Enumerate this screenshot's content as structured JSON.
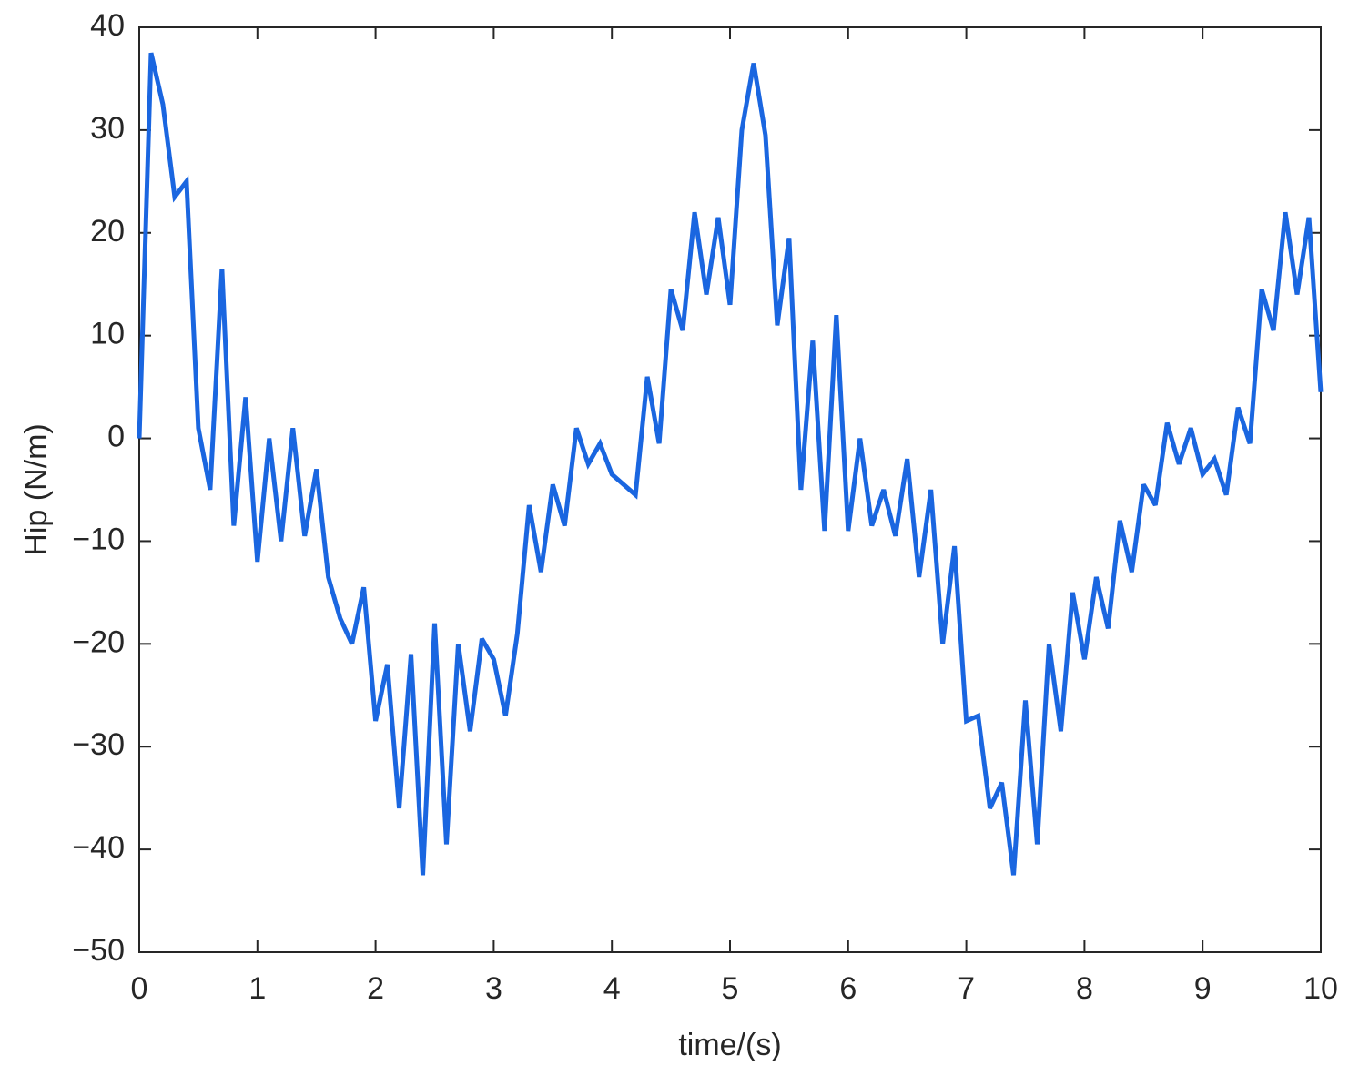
{
  "chart_data": {
    "type": "line",
    "xlabel": "time/(s)",
    "ylabel": "Hip (N/m)",
    "x": [
      0,
      0.1,
      0.2,
      0.3,
      0.4,
      0.5,
      0.6,
      0.7,
      0.8,
      0.9,
      1,
      1.1,
      1.2,
      1.3,
      1.4,
      1.5,
      1.6,
      1.7,
      1.8,
      1.9,
      2,
      2.1,
      2.2,
      2.3,
      2.4,
      2.5,
      2.6,
      2.7,
      2.8,
      2.9,
      3,
      3.1,
      3.2,
      3.3,
      3.4,
      3.5,
      3.6,
      3.7,
      3.8,
      3.9,
      4,
      4.1,
      4.2,
      4.3,
      4.4,
      4.5,
      4.6,
      4.7,
      4.8,
      4.9,
      5,
      5.1,
      5.2,
      5.3,
      5.4,
      5.5,
      5.6,
      5.7,
      5.8,
      5.9,
      6,
      6.1,
      6.2,
      6.3,
      6.4,
      6.5,
      6.6,
      6.7,
      6.8,
      6.9,
      7,
      7.1,
      7.2,
      7.3,
      7.4,
      7.5,
      7.6,
      7.7,
      7.8,
      7.9,
      8,
      8.1,
      8.2,
      8.3,
      8.4,
      8.5,
      8.6,
      8.7,
      8.8,
      8.9,
      9,
      9.1,
      9.2,
      9.3,
      9.4,
      9.5,
      9.6,
      9.7,
      9.8,
      9.9,
      10
    ],
    "series": [
      {
        "color": "#1a66e0",
        "values": [
          0,
          37.5,
          32.5,
          23.5,
          25,
          1,
          -5,
          16.5,
          -8.5,
          4,
          -12,
          0,
          -10,
          1,
          -9.5,
          -3,
          -13.5,
          -17.5,
          -20,
          -14.5,
          -27.5,
          -22,
          -36,
          -21,
          -42.5,
          -18,
          -39.5,
          -20,
          -28.5,
          -19.5,
          -21.5,
          -27,
          -19,
          -6.5,
          -13,
          -4.5,
          -8.5,
          1,
          -2.5,
          -0.5,
          -3.5,
          -4.5,
          -5.5,
          6,
          -0.5,
          14.5,
          10.5,
          22,
          14,
          21.5,
          13,
          30,
          36.5,
          29.5,
          11,
          19.5,
          -5,
          9.5,
          -9,
          12,
          -9,
          0,
          -8.5,
          -5,
          -9.5,
          -2,
          -13.5,
          -5,
          -20,
          -10.5,
          -27.5,
          -27,
          -36,
          -33.5,
          -42.5,
          -25.5,
          -39.5,
          -20,
          -28.5,
          -15,
          -21.5,
          -13.5,
          -18.5,
          -8,
          -13,
          -4.5,
          -6.5,
          1.5,
          -2.5,
          1,
          -3.5,
          -2,
          -5.5,
          3,
          -0.5,
          14.5,
          10.5,
          22,
          14,
          21.5,
          4.5
        ]
      }
    ],
    "xlim": [
      0,
      10
    ],
    "xticks": [
      0,
      1,
      2,
      3,
      4,
      5,
      6,
      7,
      8,
      9,
      10
    ],
    "ylim": [
      -50,
      40
    ],
    "yticks": [
      {
        "value": -50,
        "label": "−50"
      },
      {
        "value": -40,
        "label": "−40"
      },
      {
        "value": -30,
        "label": "−30"
      },
      {
        "value": -20,
        "label": "−20"
      },
      {
        "value": -10,
        "label": "−10"
      },
      0,
      10,
      20,
      30,
      40
    ],
    "grid": false
  }
}
